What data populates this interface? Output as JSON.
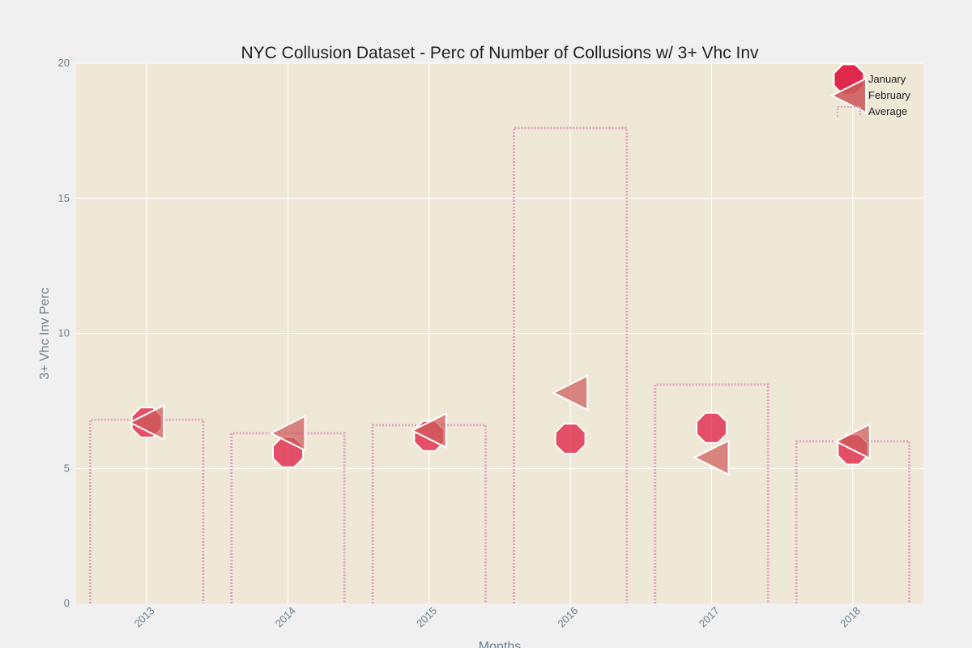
{
  "colors": {
    "page_bg": "#f0f0f0",
    "plot_bg": "#efe8d7",
    "grid": "#ffffff",
    "january": "#dc143c",
    "february": "#cd5c5c",
    "average": "#e0a5bf",
    "marker_edge": "#ffffff"
  },
  "chart_data": {
    "type": "scatter",
    "title": "NYC Collusion Dataset - Perc of Number of Collusions w/ 3+ Vhc Inv",
    "xlabel": "Months",
    "ylabel": "3+ Vhc Inv Perc",
    "categories": [
      "2013",
      "2014",
      "2015",
      "2016",
      "2017",
      "2018"
    ],
    "ylim": [
      0,
      20
    ],
    "yticks": [
      0,
      5,
      10,
      15,
      20
    ],
    "grid": true,
    "legend_position": "top-right",
    "series": [
      {
        "name": "January",
        "type": "scatter",
        "marker": "octagon",
        "color_key": "january",
        "opacity": 0.72,
        "values": [
          6.7,
          5.6,
          6.2,
          6.1,
          6.5,
          5.7
        ]
      },
      {
        "name": "February",
        "type": "scatter",
        "marker": "triangle-left",
        "color_key": "february",
        "opacity": 0.72,
        "values": [
          6.7,
          6.3,
          6.4,
          7.8,
          5.4,
          6.0
        ]
      },
      {
        "name": "Average",
        "type": "bar",
        "style": "dotted-outline",
        "color_key": "average",
        "values": [
          6.8,
          6.3,
          6.6,
          17.6,
          8.1,
          6.0
        ]
      }
    ]
  }
}
